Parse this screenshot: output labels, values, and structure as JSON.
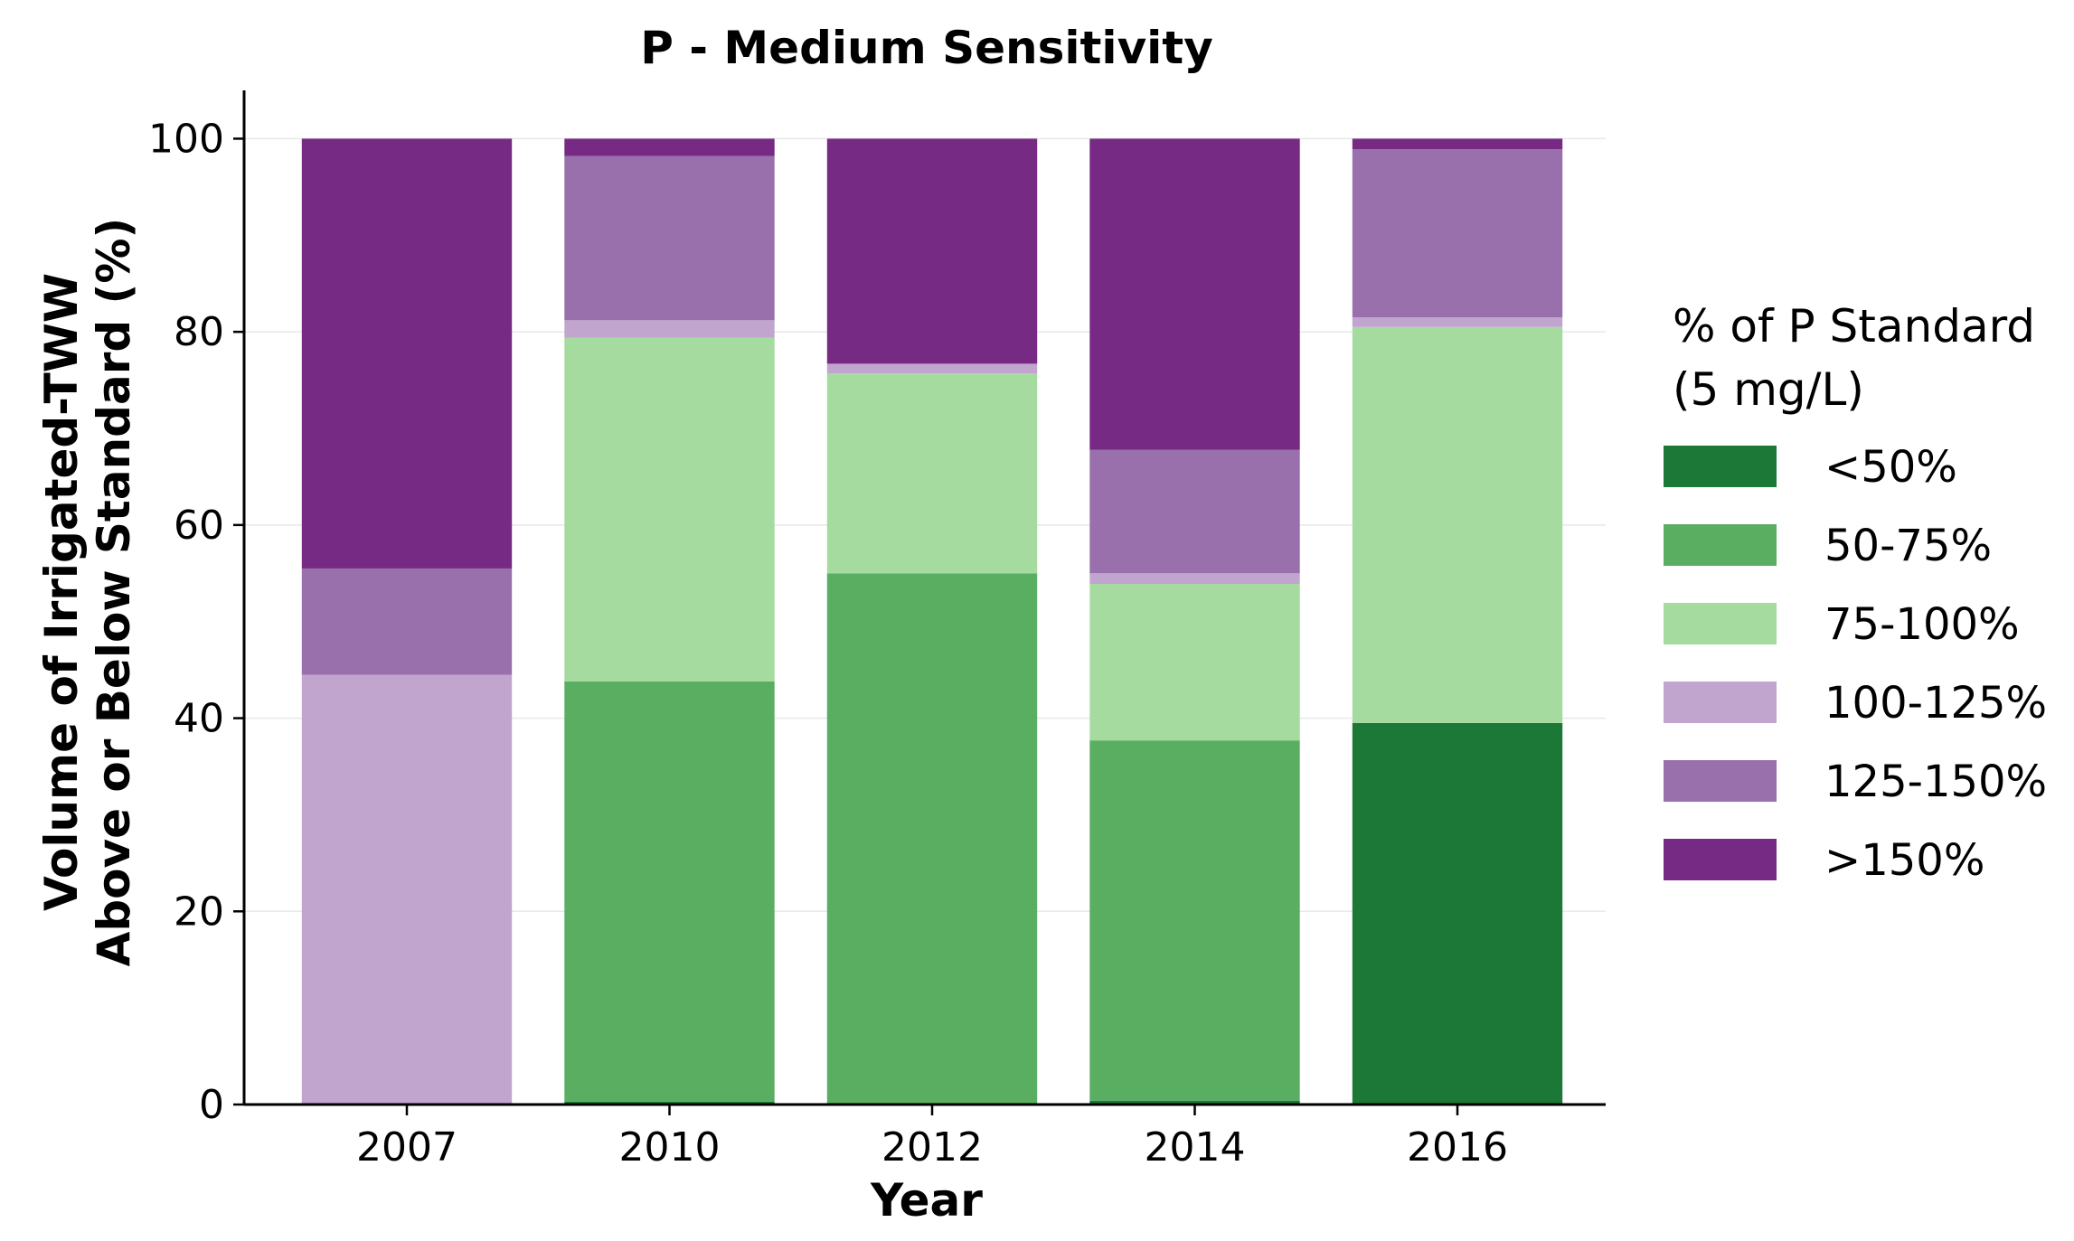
{
  "chart_data": {
    "type": "bar",
    "stacked": true,
    "title": "P - Medium Sensitivity",
    "xlabel": "Year",
    "ylabel": [
      "Volume of Irrigated-TWW",
      "Above or Below Standard (%)"
    ],
    "ylim": [
      0,
      105
    ],
    "yticks": [
      0,
      20,
      40,
      60,
      80,
      100
    ],
    "grid": "horizontal",
    "legend_placement": "right",
    "legend_title": [
      "% of P Standard",
      "(5 mg/L)"
    ],
    "categories": [
      "2007",
      "2010",
      "2012",
      "2014",
      "2016"
    ],
    "series": [
      {
        "name": "<50%",
        "color": "#1b7837",
        "values": [
          0,
          0.3,
          0,
          0.4,
          39.5
        ]
      },
      {
        "name": "50-75%",
        "color": "#5aae61",
        "values": [
          0,
          43.5,
          55.0,
          37.3,
          0
        ]
      },
      {
        "name": "75-100%",
        "color": "#a6dba0",
        "values": [
          0,
          35.6,
          20.7,
          16.2,
          41.0
        ]
      },
      {
        "name": "100-125%",
        "color": "#c2a5cf",
        "values": [
          44.5,
          1.8,
          1.0,
          1.1,
          1.0
        ]
      },
      {
        "name": "125-150%",
        "color": "#9970ab",
        "values": [
          11.0,
          17.0,
          0,
          12.8,
          17.4
        ]
      },
      {
        "name": ">150%",
        "color": "#762a83",
        "values": [
          44.5,
          1.8,
          23.3,
          32.2,
          1.1
        ]
      }
    ]
  }
}
